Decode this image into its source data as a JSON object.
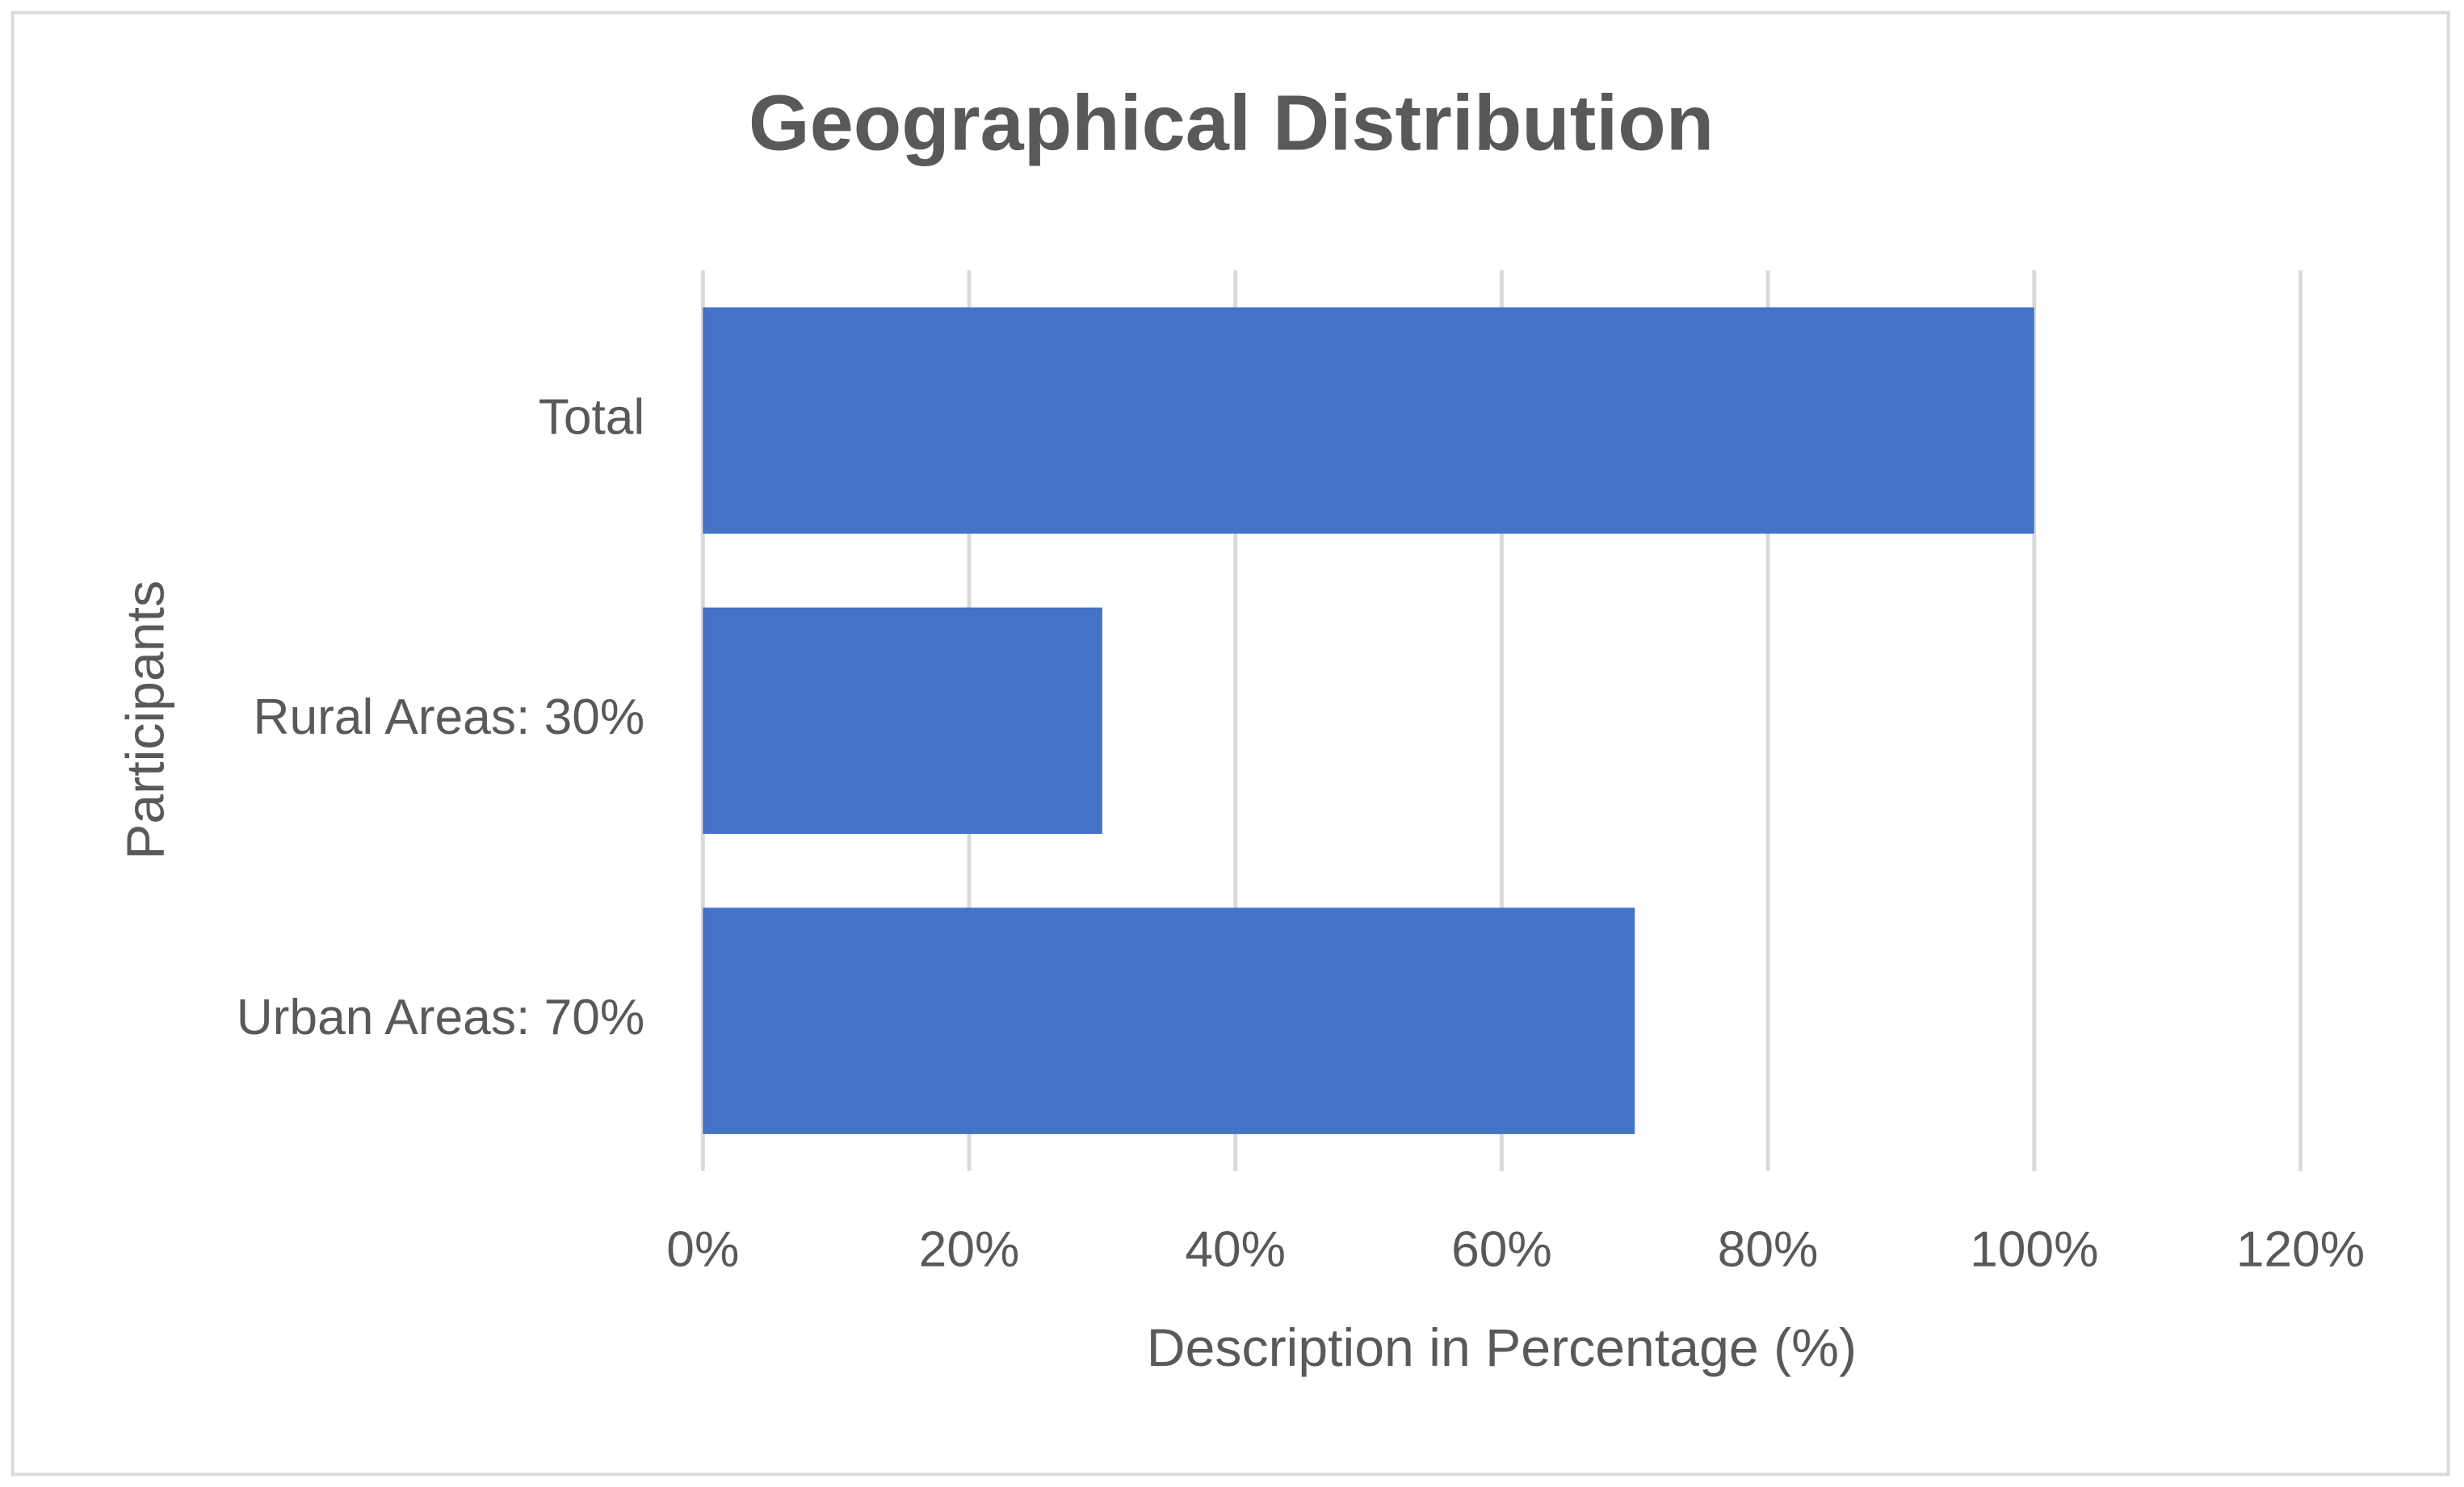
{
  "chart_data": {
    "type": "bar",
    "orientation": "horizontal",
    "title": "Geographical Distribution",
    "x_label": "Description in Percentage (%)",
    "y_label": "Participants",
    "categories": [
      "Total",
      "Rural Areas: 30%",
      "Urban Areas: 70%"
    ],
    "values": [
      100,
      30,
      70
    ],
    "color": "#4472c4",
    "xlim": [
      0,
      120
    ],
    "xticks": [
      {
        "value": 0,
        "label": "0%"
      },
      {
        "value": 20,
        "label": "20%"
      },
      {
        "value": 40,
        "label": "40%"
      },
      {
        "value": 60,
        "label": "60%"
      },
      {
        "value": 80,
        "label": "80%"
      },
      {
        "value": 100,
        "label": "100%"
      },
      {
        "value": 120,
        "label": "120%"
      }
    ],
    "grid": true
  }
}
